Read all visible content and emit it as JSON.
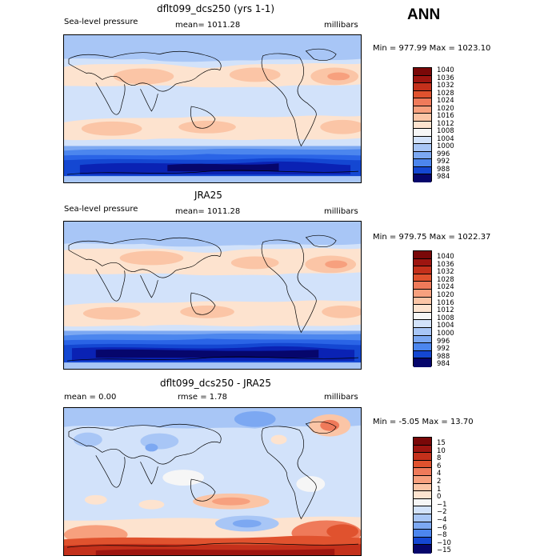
{
  "season": "ANN",
  "colors": {
    "pressure_levels": [
      "#06066c",
      "#0a22b4",
      "#1447d2",
      "#2a64e6",
      "#4c86ee",
      "#7ca8f2",
      "#a8c6f6",
      "#d2e2fa",
      "#f6f6f6",
      "#fde3cf",
      "#fbc5a6",
      "#f7a07e",
      "#ef7a5a",
      "#e0522e",
      "#c4301b",
      "#9e1510",
      "#7a0808"
    ],
    "diff_levels": [
      "#06066c",
      "#0a22b4",
      "#1447d2",
      "#2a64e6",
      "#4c86ee",
      "#7ca8f2",
      "#a8c6f6",
      "#d2e2fa",
      "#f6f6f6",
      "#fde3cf",
      "#fbc5a6",
      "#f7a07e",
      "#ef7a5a",
      "#e0522e",
      "#c4301b",
      "#9e1510",
      "#7a0808"
    ]
  },
  "panels": [
    {
      "title": "dflt099_dcs250 (yrs 1-1)",
      "left_label": "Sea-level pressure",
      "center_label": "mean= 1011.28",
      "right_label": "millibars",
      "minmax": "Min = 977.99 Max = 1023.10",
      "colorbar_labels": [
        "1040",
        "1036",
        "1032",
        "1028",
        "1024",
        "1020",
        "1016",
        "1012",
        "1008",
        "1004",
        "1000",
        "996",
        "992",
        "988",
        "984"
      ]
    },
    {
      "title": "JRA25",
      "left_label": "Sea-level pressure",
      "center_label": "mean= 1011.28",
      "right_label": "millibars",
      "minmax": "Min = 979.75 Max = 1022.37",
      "colorbar_labels": [
        "1040",
        "1036",
        "1032",
        "1028",
        "1024",
        "1020",
        "1016",
        "1012",
        "1008",
        "1004",
        "1000",
        "996",
        "992",
        "988",
        "984"
      ]
    },
    {
      "title": "dflt099_dcs250 - JRA25",
      "left_label": "mean =    0.00",
      "center_label": "rmse =    1.78",
      "right_label": "millibars",
      "minmax": "Min =  -5.05 Max =  13.70",
      "colorbar_labels": [
        "15",
        "10",
        "8",
        "6",
        "4",
        "2",
        "1",
        "0",
        "−1",
        "−2",
        "−4",
        "−6",
        "−8",
        "−10",
        "−15"
      ]
    }
  ]
}
